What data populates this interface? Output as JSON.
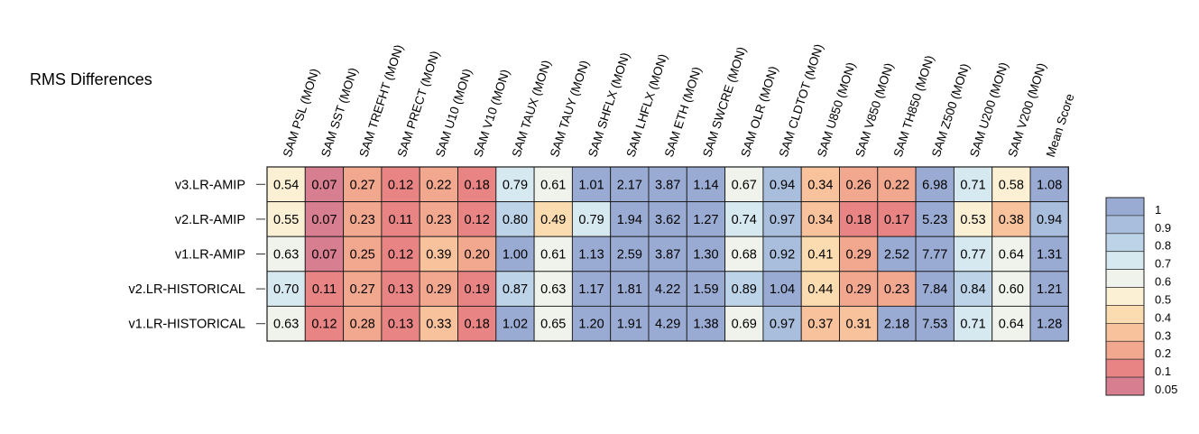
{
  "chart_data": {
    "type": "heatmap",
    "title": "RMS Differences",
    "columns": [
      "SAM PSL (MON)",
      "SAM SST (MON)",
      "SAM TREFHT (MON)",
      "SAM PRECT (MON)",
      "SAM U10 (MON)",
      "SAM V10 (MON)",
      "SAM TAUX (MON)",
      "SAM TAUY (MON)",
      "SAM SHFLX (MON)",
      "SAM LHFLX (MON)",
      "SAM ETH (MON)",
      "SAM SWCRE (MON)",
      "SAM OLR (MON)",
      "SAM CLDTOT (MON)",
      "SAM U850 (MON)",
      "SAM V850 (MON)",
      "SAM TH850 (MON)",
      "SAM Z500 (MON)",
      "SAM U200 (MON)",
      "SAM V200 (MON)",
      "Mean Score"
    ],
    "rows": [
      {
        "label": "v3.LR-AMIP",
        "values": [
          "0.54",
          "0.07",
          "0.27",
          "0.12",
          "0.22",
          "0.18",
          "0.79",
          "0.61",
          "1.01",
          "2.17",
          "3.87",
          "1.14",
          "0.67",
          "0.94",
          "0.34",
          "0.26",
          "0.22",
          "6.98",
          "0.71",
          "0.58",
          "1.08"
        ]
      },
      {
        "label": "v2.LR-AMIP",
        "values": [
          "0.55",
          "0.07",
          "0.23",
          "0.11",
          "0.23",
          "0.12",
          "0.80",
          "0.49",
          "0.79",
          "1.94",
          "3.62",
          "1.27",
          "0.74",
          "0.97",
          "0.34",
          "0.18",
          "0.17",
          "5.23",
          "0.53",
          "0.38",
          "0.94"
        ]
      },
      {
        "label": "v1.LR-AMIP",
        "values": [
          "0.63",
          "0.07",
          "0.25",
          "0.12",
          "0.39",
          "0.20",
          "1.00",
          "0.61",
          "1.13",
          "2.59",
          "3.87",
          "1.30",
          "0.68",
          "0.92",
          "0.41",
          "0.29",
          "2.52",
          "7.77",
          "0.77",
          "0.64",
          "1.31"
        ]
      },
      {
        "label": "v2.LR-HISTORICAL",
        "values": [
          "0.70",
          "0.11",
          "0.27",
          "0.13",
          "0.29",
          "0.19",
          "0.87",
          "0.63",
          "1.17",
          "1.81",
          "4.22",
          "1.59",
          "0.89",
          "1.04",
          "0.44",
          "0.29",
          "0.23",
          "7.84",
          "0.84",
          "0.60",
          "1.21"
        ]
      },
      {
        "label": "v1.LR-HISTORICAL",
        "values": [
          "0.63",
          "0.12",
          "0.28",
          "0.13",
          "0.33",
          "0.18",
          "1.02",
          "0.65",
          "1.20",
          "1.91",
          "4.29",
          "1.38",
          "0.69",
          "0.97",
          "0.37",
          "0.31",
          "2.18",
          "7.53",
          "0.71",
          "0.64",
          "1.28"
        ]
      }
    ],
    "legend": {
      "placement": "right",
      "labels": [
        "1",
        "0.9",
        "0.8",
        "0.7",
        "0.6",
        "0.5",
        "0.4",
        "0.3",
        "0.2",
        "0.1",
        "0.05"
      ],
      "colors": [
        "#9aabd3",
        "#a9bedd",
        "#bcd3e8",
        "#d6e8f0",
        "#f0f2ec",
        "#fbf0d3",
        "#fbdcb0",
        "#f8c39c",
        "#f2a88f",
        "#e88584",
        "#d77e90"
      ]
    }
  }
}
